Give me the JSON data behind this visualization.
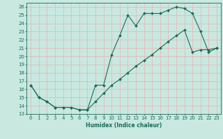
{
  "xlabel": "Humidex (Indice chaleur)",
  "bg_color": "#c8e8e0",
  "line_color": "#1a6b5a",
  "grid_color": "#e8b8b8",
  "xlim": [
    -0.5,
    23.5
  ],
  "ylim": [
    13,
    26.5
  ],
  "yticks": [
    13,
    14,
    15,
    16,
    17,
    18,
    19,
    20,
    21,
    22,
    23,
    24,
    25,
    26
  ],
  "xticks": [
    0,
    1,
    2,
    3,
    4,
    5,
    6,
    7,
    8,
    9,
    10,
    11,
    12,
    13,
    14,
    15,
    16,
    17,
    18,
    19,
    20,
    21,
    22,
    23
  ],
  "line1_x": [
    0,
    1,
    2,
    3,
    4,
    5,
    6,
    7,
    8,
    9,
    10,
    11,
    12,
    13,
    14,
    15,
    16,
    17,
    18,
    19,
    20,
    21,
    22,
    23
  ],
  "line1_y": [
    16.5,
    15.0,
    14.5,
    13.8,
    13.8,
    13.8,
    13.5,
    13.5,
    16.5,
    16.5,
    20.2,
    22.5,
    25.0,
    23.7,
    25.2,
    25.2,
    25.2,
    25.6,
    26.0,
    25.8,
    25.2,
    23.0,
    20.5,
    21.0
  ],
  "line2_x": [
    0,
    1,
    2,
    3,
    4,
    5,
    6,
    7,
    8,
    9,
    10,
    11,
    12,
    13,
    14,
    15,
    16,
    17,
    18,
    19,
    20,
    21,
    22,
    23
  ],
  "line2_y": [
    16.5,
    15.0,
    14.5,
    13.8,
    13.8,
    13.8,
    13.5,
    13.5,
    14.5,
    15.5,
    16.5,
    17.2,
    18.0,
    18.8,
    19.5,
    20.2,
    21.0,
    21.8,
    22.5,
    23.2,
    20.5,
    20.8,
    20.8,
    21.0
  ]
}
